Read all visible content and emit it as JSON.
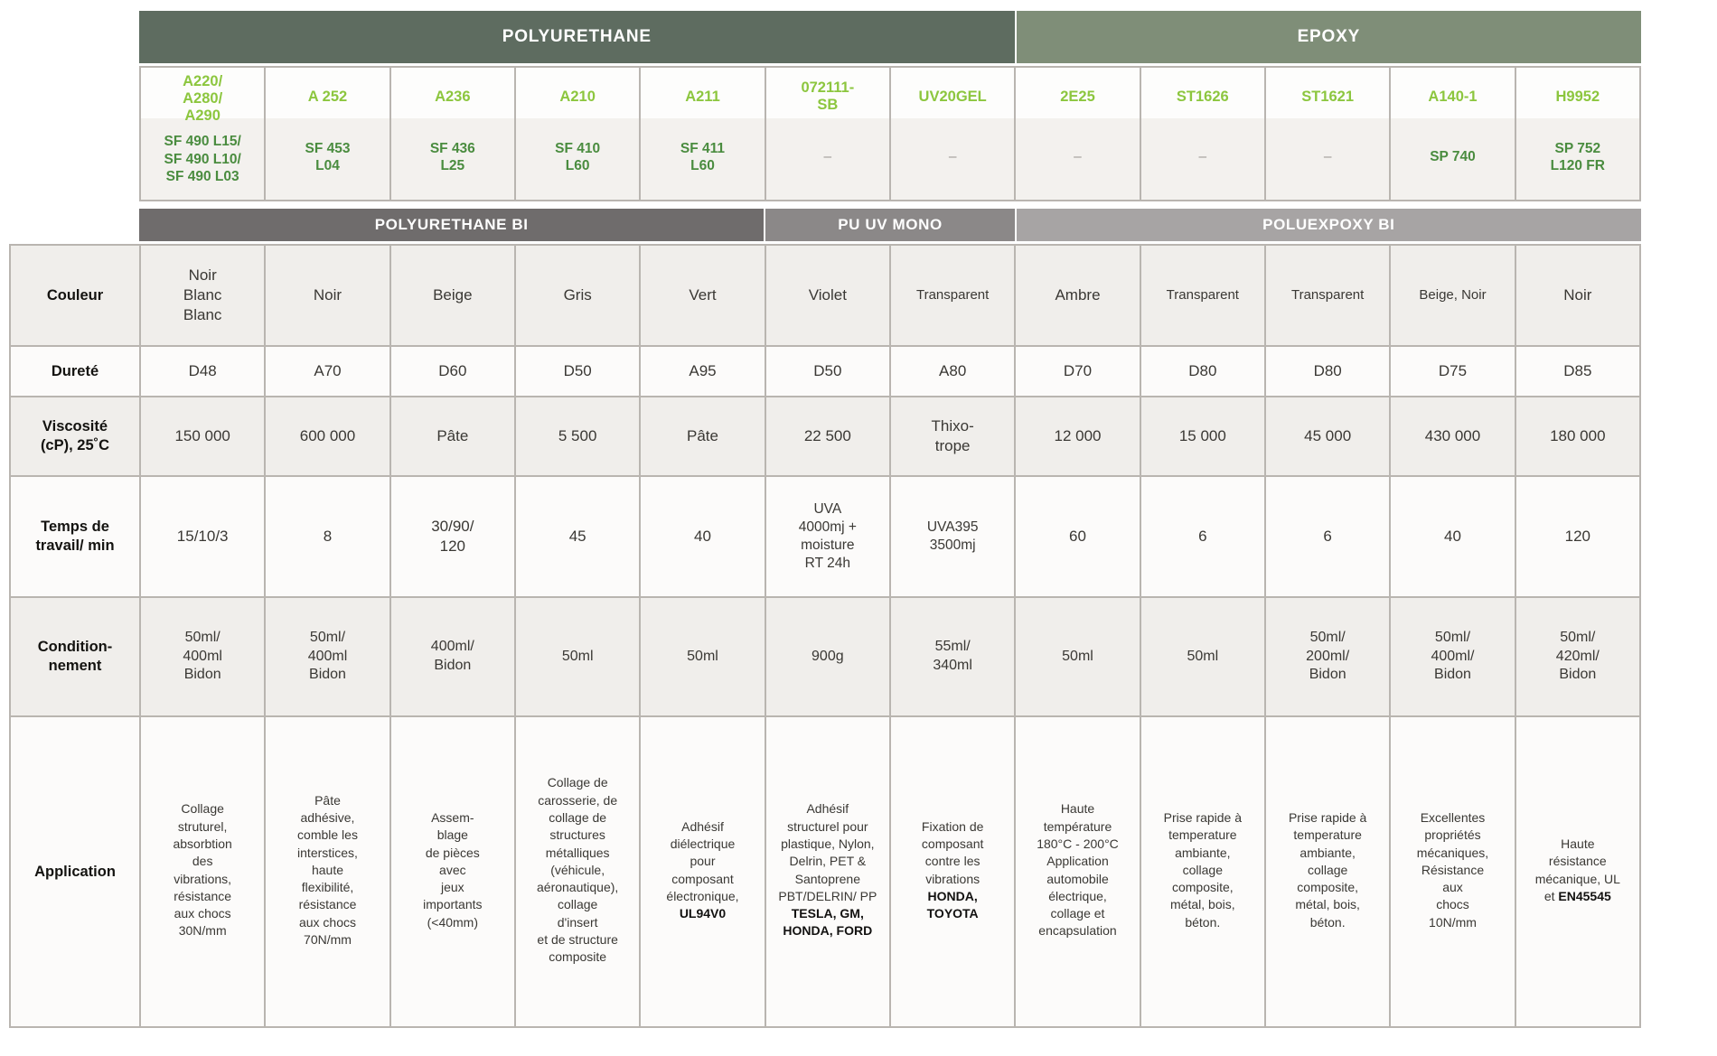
{
  "table": {
    "group_headers": [
      {
        "label": "POLYURETHANE",
        "color": "#5e6c60"
      },
      {
        "label": "EPOXY",
        "color": "#7f8e78"
      }
    ],
    "type_headers": [
      {
        "label": "POLYURETHANE BI",
        "color": "#6f6c6c"
      },
      {
        "label": "PU UV MONO",
        "color": "#8b8888"
      },
      {
        "label": "POLUEXPOXY BI",
        "color": "#a7a4a4"
      }
    ],
    "products": [
      {
        "code": "A220/\nA280/\nA290",
        "ref": "SF 490 L15/\nSF 490 L10/\nSF 490 L03"
      },
      {
        "code": "A 252",
        "ref": "SF 453\nL04"
      },
      {
        "code": "A236",
        "ref": "SF 436\nL25"
      },
      {
        "code": "A210",
        "ref": "SF 410\nL60"
      },
      {
        "code": "A211",
        "ref": "SF 411\nL60"
      },
      {
        "code": "072111-\nSB",
        "ref": "–"
      },
      {
        "code": "UV20GEL",
        "ref": "–"
      },
      {
        "code": "2E25",
        "ref": "–"
      },
      {
        "code": "ST1626",
        "ref": "–"
      },
      {
        "code": "ST1621",
        "ref": "–"
      },
      {
        "code": "A140-1",
        "ref": "SP 740"
      },
      {
        "code": "H9952",
        "ref": "SP 752\nL120 FR"
      }
    ],
    "row_labels": [
      "Couleur",
      "Dureté",
      "Viscosité\n(cP), 25˚C",
      "Temps de\ntravail/ min",
      "Condition-\nnement",
      "Application"
    ],
    "couleur": [
      "Noir\nBlanc\nBlanc",
      "Noir",
      "Beige",
      "Gris",
      "Vert",
      "Violet",
      "Transparent",
      "Ambre",
      "Transparent",
      "Transparent",
      "Beige, Noir",
      "Noir"
    ],
    "durete": [
      "D48",
      "A70",
      "D60",
      "D50",
      "A95",
      "D50",
      "A80",
      "D70",
      "D80",
      "D80",
      "D75",
      "D85"
    ],
    "viscosite": [
      "150 000",
      "600 000",
      "Pâte",
      "5 500",
      "Pâte",
      "22 500",
      "Thixo-\ntrope",
      "12 000",
      "15 000",
      "45 000",
      "430 000",
      "180 000"
    ],
    "temps": [
      "15/10/3",
      "8",
      "30/90/\n120",
      "45",
      "40",
      "UVA\n4000mj +\nmoisture\nRT 24h",
      "UVA395\n3500mj",
      "60",
      "6",
      "6",
      "40",
      "120"
    ],
    "conditionnement": [
      "50ml/\n400ml\nBidon",
      "50ml/\n400ml\nBidon",
      "400ml/\nBidon",
      "50ml",
      "50ml",
      "900g",
      "55ml/\n340ml",
      "50ml",
      "50ml",
      "50ml/\n200ml/\nBidon",
      "50ml/\n400ml/\nBidon",
      "50ml/\n420ml/\nBidon"
    ],
    "application": [
      {
        "text": "Collage\nstruturel,\nabsorbtion\ndes\nvibrations,\nrésistance\naux chocs\n30N/mm",
        "bold": ""
      },
      {
        "text": "Pâte\nadhésive,\ncomble les\ninterstices,\nhaute\nflexibilité,\nrésistance\naux chocs\n70N/mm",
        "bold": ""
      },
      {
        "text": "Assem-\nblage\nde pièces\navec\njeux\nimportants\n(<40mm)",
        "bold": ""
      },
      {
        "text": "Collage de\ncarosserie, de\ncollage de\nstructures\nmétalliques\n(véhicule,\naéronautique),\ncollage\nd'insert\net de structure\ncomposite",
        "bold": ""
      },
      {
        "text": "Adhésif\ndiélectrique\npour\ncomposant\nélectronique,\n",
        "bold": "UL94V0"
      },
      {
        "text": "Adhésif\nstructurel pour\nplastique, Nylon,\nDelrin, PET &\nSantoprene\nPBT/DELRIN/ PP\n",
        "bold": "TESLA, GM,\nHONDA, FORD"
      },
      {
        "text": "Fixation de\ncomposant\ncontre les\nvibrations\n",
        "bold": "HONDA,\nTOYOTA"
      },
      {
        "text": "Haute\ntempérature\n180°C - 200°C\nApplication\nautomobile\nélectrique,\ncollage et\nencapsulation",
        "bold": ""
      },
      {
        "text": "Prise rapide à\ntemperature\nambiante,\ncollage\ncomposite,\nmétal, bois,\nbéton.",
        "bold": ""
      },
      {
        "text": "Prise rapide à\ntemperature\nambiante,\ncollage\ncomposite,\nmétal, bois,\nbéton.",
        "bold": ""
      },
      {
        "text": "Excellentes\npropriétés\nmécaniques,\nRésistance\naux\nchocs\n10N/mm",
        "bold": ""
      },
      {
        "text": "Haute\nrésistance\nmécanique, UL\net ",
        "bold": "EN45545"
      }
    ],
    "colors": {
      "code_green": "#8cc63e",
      "ref_green": "#4a8c3f",
      "row_shade": "#f0eeeb",
      "grid_line": "#b9b5b0"
    }
  }
}
